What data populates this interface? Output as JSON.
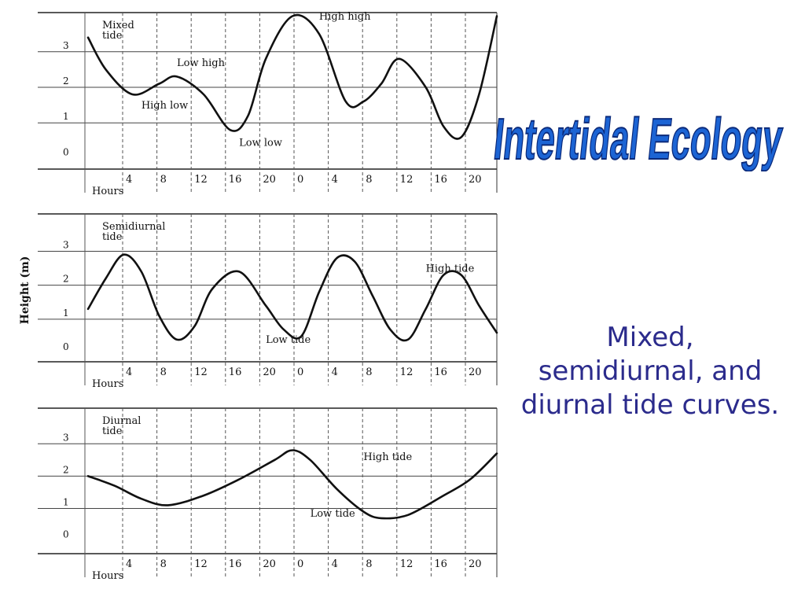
{
  "slide_title": "Intertidal Ecology",
  "caption": "Mixed, semidiurnal, and diurnal tide curves.",
  "colors": {
    "title_fill": "#1c64d4",
    "title_outline": "#0b2a7a",
    "caption": "#2b2b8c",
    "curve": "#111111"
  },
  "chart_data": [
    {
      "type": "line",
      "title": "Mixed tide",
      "xlabel": "Hours",
      "ylabel": "",
      "x_ticks": [
        "4",
        "8",
        "12",
        "16",
        "20",
        "0",
        "4",
        "8",
        "12",
        "16",
        "20"
      ],
      "y_ticks": [
        "0",
        "1",
        "2",
        "3"
      ],
      "xlim": [
        0,
        46
      ],
      "ylim": [
        -0.3,
        4.1
      ],
      "grid": true,
      "series": [
        {
          "x": [
            0,
            2,
            5,
            8,
            10,
            13,
            16,
            18,
            20,
            23,
            26,
            29,
            31,
            33,
            35,
            38,
            40,
            42,
            44,
            46
          ],
          "values": [
            3.4,
            2.5,
            1.8,
            2.1,
            2.3,
            1.8,
            0.8,
            1.2,
            2.8,
            4.0,
            3.5,
            1.6,
            1.6,
            2.1,
            2.8,
            2.0,
            0.9,
            0.6,
            1.8,
            4.0
          ]
        }
      ],
      "annotations": [
        {
          "text": "High high",
          "x": 26,
          "y": 3.9
        },
        {
          "text": "Low high",
          "x": 10,
          "y": 2.6
        },
        {
          "text": "High low",
          "x": 6,
          "y": 1.4
        },
        {
          "text": "Low low",
          "x": 17,
          "y": 0.35
        }
      ]
    },
    {
      "type": "line",
      "title": "Semidiurnal tide",
      "xlabel": "Hours",
      "ylabel": "Height (m)",
      "x_ticks": [
        "4",
        "8",
        "12",
        "16",
        "20",
        "0",
        "4",
        "8",
        "12",
        "16",
        "20"
      ],
      "y_ticks": [
        "0",
        "1",
        "2",
        "3"
      ],
      "xlim": [
        0,
        46
      ],
      "ylim": [
        -0.3,
        4.1
      ],
      "grid": true,
      "series": [
        {
          "x": [
            0,
            2,
            4,
            6,
            8,
            10,
            12,
            14,
            17,
            20,
            22,
            24,
            26,
            28,
            30,
            32,
            34,
            36,
            38,
            40,
            42,
            44,
            46
          ],
          "values": [
            1.3,
            2.2,
            2.9,
            2.4,
            1.1,
            0.4,
            0.8,
            1.9,
            2.4,
            1.4,
            0.7,
            0.5,
            1.8,
            2.8,
            2.7,
            1.7,
            0.7,
            0.4,
            1.3,
            2.3,
            2.3,
            1.4,
            0.6
          ]
        }
      ],
      "annotations": [
        {
          "text": "High tide",
          "x": 38,
          "y": 2.4
        },
        {
          "text": "Low tide",
          "x": 20,
          "y": 0.3
        }
      ]
    },
    {
      "type": "line",
      "title": "Diurnal tide",
      "xlabel": "Hours",
      "ylabel": "",
      "x_ticks": [
        "4",
        "8",
        "12",
        "16",
        "20",
        "0",
        "4",
        "8",
        "12",
        "16",
        "20"
      ],
      "y_ticks": [
        "0",
        "1",
        "2",
        "3"
      ],
      "xlim": [
        0,
        46
      ],
      "ylim": [
        -0.3,
        4.1
      ],
      "grid": true,
      "series": [
        {
          "x": [
            0,
            3,
            6,
            9,
            13,
            17,
            21,
            23,
            25,
            28,
            31,
            33,
            36,
            40,
            43,
            46
          ],
          "values": [
            2.0,
            1.7,
            1.3,
            1.1,
            1.4,
            1.9,
            2.5,
            2.8,
            2.5,
            1.6,
            0.9,
            0.7,
            0.8,
            1.4,
            1.9,
            2.7
          ]
        }
      ],
      "annotations": [
        {
          "text": "High tide",
          "x": 31,
          "y": 2.5
        },
        {
          "text": "Low tide",
          "x": 25,
          "y": 0.75
        }
      ]
    }
  ]
}
